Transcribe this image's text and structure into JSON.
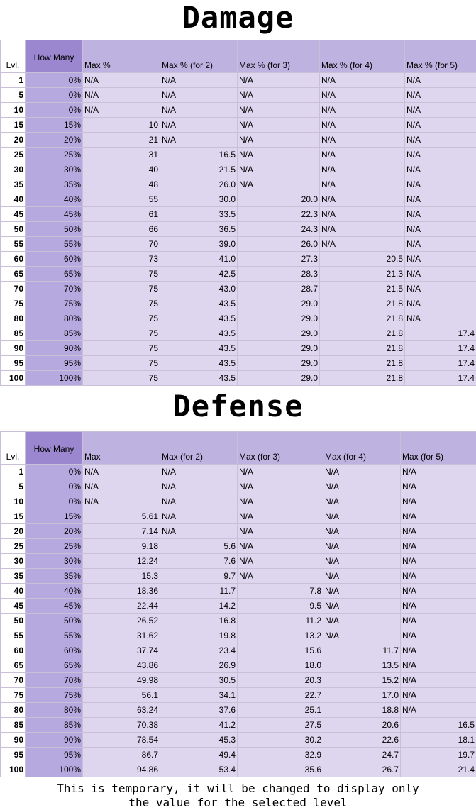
{
  "damage": {
    "title": "Damage",
    "headers": [
      "Lvl.",
      "How Many",
      "Max %",
      "Max % (for 2)",
      "Max % (for 3)",
      "Max % (for 4)",
      "Max % (for 5)"
    ],
    "rows": [
      [
        "1",
        "0%",
        "N/A",
        "N/A",
        "N/A",
        "N/A",
        "N/A"
      ],
      [
        "5",
        "0%",
        "N/A",
        "N/A",
        "N/A",
        "N/A",
        "N/A"
      ],
      [
        "10",
        "0%",
        "N/A",
        "N/A",
        "N/A",
        "N/A",
        "N/A"
      ],
      [
        "15",
        "15%",
        "10",
        "N/A",
        "N/A",
        "N/A",
        "N/A"
      ],
      [
        "20",
        "20%",
        "21",
        "N/A",
        "N/A",
        "N/A",
        "N/A"
      ],
      [
        "25",
        "25%",
        "31",
        "16.5",
        "N/A",
        "N/A",
        "N/A"
      ],
      [
        "30",
        "30%",
        "40",
        "21.5",
        "N/A",
        "N/A",
        "N/A"
      ],
      [
        "35",
        "35%",
        "48",
        "26.0",
        "N/A",
        "N/A",
        "N/A"
      ],
      [
        "40",
        "40%",
        "55",
        "30.0",
        "20.0",
        "N/A",
        "N/A"
      ],
      [
        "45",
        "45%",
        "61",
        "33.5",
        "22.3",
        "N/A",
        "N/A"
      ],
      [
        "50",
        "50%",
        "66",
        "36.5",
        "24.3",
        "N/A",
        "N/A"
      ],
      [
        "55",
        "55%",
        "70",
        "39.0",
        "26.0",
        "N/A",
        "N/A"
      ],
      [
        "60",
        "60%",
        "73",
        "41.0",
        "27.3",
        "20.5",
        "N/A"
      ],
      [
        "65",
        "65%",
        "75",
        "42.5",
        "28.3",
        "21.3",
        "N/A"
      ],
      [
        "70",
        "70%",
        "75",
        "43.0",
        "28.7",
        "21.5",
        "N/A"
      ],
      [
        "75",
        "75%",
        "75",
        "43.5",
        "29.0",
        "21.8",
        "N/A"
      ],
      [
        "80",
        "80%",
        "75",
        "43.5",
        "29.0",
        "21.8",
        "N/A"
      ],
      [
        "85",
        "85%",
        "75",
        "43.5",
        "29.0",
        "21.8",
        "17.4"
      ],
      [
        "90",
        "90%",
        "75",
        "43.5",
        "29.0",
        "21.8",
        "17.4"
      ],
      [
        "95",
        "95%",
        "75",
        "43.5",
        "29.0",
        "21.8",
        "17.4"
      ],
      [
        "100",
        "100%",
        "75",
        "43.5",
        "29.0",
        "21.8",
        "17.4"
      ]
    ]
  },
  "defense": {
    "title": "Defense",
    "headers": [
      "Lvl.",
      "How Many",
      "Max",
      "Max (for 2)",
      "Max (for 3)",
      "Max (for 4)",
      "Max (for 5)"
    ],
    "rows": [
      [
        "1",
        "0%",
        "N/A",
        "N/A",
        "N/A",
        "N/A",
        "N/A"
      ],
      [
        "5",
        "0%",
        "N/A",
        "N/A",
        "N/A",
        "N/A",
        "N/A"
      ],
      [
        "10",
        "0%",
        "N/A",
        "N/A",
        "N/A",
        "N/A",
        "N/A"
      ],
      [
        "15",
        "15%",
        "5.61",
        "N/A",
        "N/A",
        "N/A",
        "N/A"
      ],
      [
        "20",
        "20%",
        "7.14",
        "N/A",
        "N/A",
        "N/A",
        "N/A"
      ],
      [
        "25",
        "25%",
        "9.18",
        "5.6",
        "N/A",
        "N/A",
        "N/A"
      ],
      [
        "30",
        "30%",
        "12.24",
        "7.6",
        "N/A",
        "N/A",
        "N/A"
      ],
      [
        "35",
        "35%",
        "15.3",
        "9.7",
        "N/A",
        "N/A",
        "N/A"
      ],
      [
        "40",
        "40%",
        "18.36",
        "11.7",
        "7.8",
        "N/A",
        "N/A"
      ],
      [
        "45",
        "45%",
        "22.44",
        "14.2",
        "9.5",
        "N/A",
        "N/A"
      ],
      [
        "50",
        "50%",
        "26.52",
        "16.8",
        "11.2",
        "N/A",
        "N/A"
      ],
      [
        "55",
        "55%",
        "31.62",
        "19.8",
        "13.2",
        "N/A",
        "N/A"
      ],
      [
        "60",
        "60%",
        "37.74",
        "23.4",
        "15.6",
        "11.7",
        "N/A"
      ],
      [
        "65",
        "65%",
        "43.86",
        "26.9",
        "18.0",
        "13.5",
        "N/A"
      ],
      [
        "70",
        "70%",
        "49.98",
        "30.5",
        "20.3",
        "15.2",
        "N/A"
      ],
      [
        "75",
        "75%",
        "56.1",
        "34.1",
        "22.7",
        "17.0",
        "N/A"
      ],
      [
        "80",
        "80%",
        "63.24",
        "37.6",
        "25.1",
        "18.8",
        "N/A"
      ],
      [
        "85",
        "85%",
        "70.38",
        "41.2",
        "27.5",
        "20.6",
        "16.5"
      ],
      [
        "90",
        "90%",
        "78.54",
        "45.3",
        "30.2",
        "22.6",
        "18.1"
      ],
      [
        "95",
        "95%",
        "86.7",
        "49.4",
        "32.9",
        "24.7",
        "19.7"
      ],
      [
        "100",
        "100%",
        "94.86",
        "53.4",
        "35.6",
        "26.7",
        "21.4"
      ]
    ]
  },
  "footer": {
    "line1": "This is temporary, it will be changed to display only",
    "line2": "the value for the selected level"
  },
  "colors": {
    "header": "#bdb2e0",
    "how_many_header": "#9b86d0",
    "how_many_column": "#b6a9e0",
    "cell": "#ddd6ee",
    "grid": "#c9c0d8"
  }
}
